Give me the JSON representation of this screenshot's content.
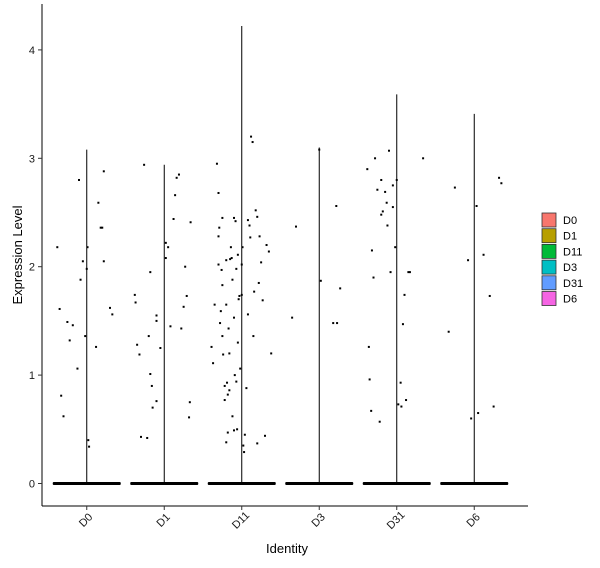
{
  "chart_data": {
    "type": "violin",
    "xlabel": "Identity",
    "ylabel": "Expression Level",
    "categories": [
      "D0",
      "D1",
      "D11",
      "D3",
      "D31",
      "D6"
    ],
    "yticks": [
      0,
      1,
      2,
      3,
      4
    ],
    "ylim": [
      -0.25,
      4.4
    ],
    "grid": false,
    "legend": {
      "position": "right",
      "entries": [
        "D0",
        "D1",
        "D11",
        "D3",
        "D31",
        "D6"
      ],
      "colors": [
        "#F8766D",
        "#B79F00",
        "#00BA38",
        "#00BFC4",
        "#619CFF",
        "#F564E3"
      ]
    },
    "series": [
      {
        "name": "D0",
        "max": 3.08,
        "points": [
          [
            -0.38,
            2.18
          ],
          [
            -0.35,
            1.61
          ],
          [
            -0.33,
            0.81
          ],
          [
            -0.3,
            0.62
          ],
          [
            -0.25,
            1.49
          ],
          [
            -0.22,
            1.32
          ],
          [
            -0.18,
            1.46
          ],
          [
            -0.12,
            1.06
          ],
          [
            -0.1,
            2.8
          ],
          [
            -0.08,
            1.88
          ],
          [
            -0.05,
            2.05
          ],
          [
            -0.02,
            1.36
          ],
          [
            0.0,
            1.98
          ],
          [
            0.01,
            2.18
          ],
          [
            0.02,
            0.4
          ],
          [
            0.03,
            0.34
          ],
          [
            0.12,
            1.26
          ],
          [
            0.15,
            2.59
          ],
          [
            0.18,
            2.36
          ],
          [
            0.2,
            2.36
          ],
          [
            0.22,
            2.88
          ],
          [
            0.22,
            2.05
          ],
          [
            0.3,
            1.62
          ],
          [
            0.33,
            1.56
          ]
        ]
      },
      {
        "name": "D1",
        "max": 2.94,
        "points": [
          [
            -0.38,
            1.74
          ],
          [
            -0.37,
            1.67
          ],
          [
            -0.35,
            1.28
          ],
          [
            -0.32,
            1.19
          ],
          [
            -0.3,
            0.43
          ],
          [
            -0.26,
            2.94
          ],
          [
            -0.22,
            0.42
          ],
          [
            -0.2,
            1.36
          ],
          [
            -0.15,
            0.7
          ],
          [
            -0.18,
            1.95
          ],
          [
            -0.18,
            1.01
          ],
          [
            -0.16,
            0.9
          ],
          [
            -0.1,
            1.5
          ],
          [
            -0.1,
            1.55
          ],
          [
            -0.1,
            0.76
          ],
          [
            -0.05,
            1.25
          ],
          [
            0.02,
            2.08
          ],
          [
            0.02,
            2.22
          ],
          [
            0.05,
            2.18
          ],
          [
            0.08,
            1.45
          ],
          [
            0.12,
            2.44
          ],
          [
            0.14,
            2.66
          ],
          [
            0.16,
            2.82
          ],
          [
            0.19,
            2.85
          ],
          [
            0.22,
            1.43
          ],
          [
            0.25,
            1.63
          ],
          [
            0.27,
            2.0
          ],
          [
            0.29,
            1.73
          ],
          [
            0.32,
            0.61
          ],
          [
            0.33,
            0.75
          ],
          [
            0.34,
            2.41
          ]
        ]
      },
      {
        "name": "D11",
        "max": 4.22,
        "points": [
          [
            -0.39,
            1.26
          ],
          [
            -0.37,
            1.11
          ],
          [
            -0.35,
            1.65
          ],
          [
            -0.32,
            2.95
          ],
          [
            -0.3,
            2.28
          ],
          [
            -0.3,
            2.68
          ],
          [
            -0.3,
            2.02
          ],
          [
            -0.29,
            2.36
          ],
          [
            -0.28,
            1.48
          ],
          [
            -0.27,
            1.59
          ],
          [
            -0.26,
            1.97
          ],
          [
            -0.25,
            2.45
          ],
          [
            -0.25,
            1.83
          ],
          [
            -0.25,
            1.36
          ],
          [
            -0.24,
            1.19
          ],
          [
            -0.22,
            0.9
          ],
          [
            -0.22,
            0.77
          ],
          [
            -0.2,
            2.06
          ],
          [
            -0.2,
            1.65
          ],
          [
            -0.2,
            0.38
          ],
          [
            -0.19,
            0.93
          ],
          [
            -0.18,
            0.82
          ],
          [
            -0.18,
            0.47
          ],
          [
            -0.17,
            1.43
          ],
          [
            -0.16,
            1.2
          ],
          [
            -0.16,
            0.86
          ],
          [
            -0.15,
            2.07
          ],
          [
            -0.14,
            2.18
          ],
          [
            -0.13,
            2.08
          ],
          [
            -0.12,
            1.88
          ],
          [
            -0.12,
            0.62
          ],
          [
            -0.1,
            2.45
          ],
          [
            -0.1,
            1.53
          ],
          [
            -0.1,
            0.49
          ],
          [
            -0.09,
            1.0
          ],
          [
            -0.08,
            2.42
          ],
          [
            -0.07,
            1.98
          ],
          [
            -0.07,
            0.94
          ],
          [
            -0.06,
            0.5
          ],
          [
            -0.05,
            1.3
          ],
          [
            -0.05,
            2.11
          ],
          [
            -0.04,
            1.7
          ],
          [
            -0.03,
            1.73
          ],
          [
            -0.02,
            1.06
          ],
          [
            0.0,
            1.74
          ],
          [
            0.0,
            2.02
          ],
          [
            0.01,
            2.18
          ],
          [
            0.02,
            0.35
          ],
          [
            0.03,
            0.29
          ],
          [
            0.04,
            0.45
          ],
          [
            0.06,
            0.88
          ],
          [
            0.08,
            1.56
          ],
          [
            0.08,
            2.43
          ],
          [
            0.1,
            2.38
          ],
          [
            0.11,
            2.27
          ],
          [
            0.12,
            3.2
          ],
          [
            0.14,
            3.15
          ],
          [
            0.15,
            1.36
          ],
          [
            0.16,
            1.77
          ],
          [
            0.18,
            2.52
          ],
          [
            0.2,
            2.46
          ],
          [
            0.2,
            0.37
          ],
          [
            0.22,
            1.85
          ],
          [
            0.23,
            2.28
          ],
          [
            0.25,
            2.04
          ],
          [
            0.27,
            1.69
          ],
          [
            0.3,
            0.44
          ],
          [
            0.32,
            2.2
          ],
          [
            0.35,
            2.14
          ],
          [
            0.38,
            1.2
          ]
        ]
      },
      {
        "name": "D3",
        "max": 3.1,
        "points": [
          [
            -0.35,
            1.53
          ],
          [
            -0.3,
            2.37
          ],
          [
            0.0,
            3.08
          ],
          [
            0.02,
            1.87
          ],
          [
            0.18,
            1.48
          ],
          [
            0.22,
            2.56
          ],
          [
            0.23,
            1.48
          ],
          [
            0.27,
            1.8
          ]
        ]
      },
      {
        "name": "D31",
        "max": 3.59,
        "points": [
          [
            -0.38,
            2.9
          ],
          [
            -0.36,
            1.26
          ],
          [
            -0.35,
            0.96
          ],
          [
            -0.33,
            0.67
          ],
          [
            -0.32,
            2.15
          ],
          [
            -0.3,
            1.9
          ],
          [
            -0.28,
            3.0
          ],
          [
            -0.25,
            2.71
          ],
          [
            -0.22,
            0.57
          ],
          [
            -0.2,
            2.48
          ],
          [
            -0.2,
            2.8
          ],
          [
            -0.18,
            2.51
          ],
          [
            -0.15,
            2.69
          ],
          [
            -0.13,
            2.59
          ],
          [
            -0.12,
            2.38
          ],
          [
            -0.1,
            3.07
          ],
          [
            -0.08,
            1.95
          ],
          [
            -0.05,
            2.75
          ],
          [
            -0.05,
            2.55
          ],
          [
            -0.02,
            2.18
          ],
          [
            0.0,
            2.8
          ],
          [
            0.02,
            0.73
          ],
          [
            0.05,
            0.93
          ],
          [
            0.06,
            0.71
          ],
          [
            0.08,
            1.47
          ],
          [
            0.1,
            1.74
          ],
          [
            0.12,
            0.77
          ],
          [
            0.15,
            1.95
          ],
          [
            0.17,
            1.95
          ],
          [
            0.34,
            3.0
          ]
        ]
      },
      {
        "name": "D6",
        "max": 3.41,
        "points": [
          [
            -0.33,
            1.4
          ],
          [
            -0.25,
            2.73
          ],
          [
            -0.08,
            2.06
          ],
          [
            -0.04,
            0.6
          ],
          [
            0.03,
            2.56
          ],
          [
            0.05,
            0.65
          ],
          [
            0.12,
            2.11
          ],
          [
            0.2,
            1.73
          ],
          [
            0.25,
            0.71
          ],
          [
            0.32,
            2.82
          ],
          [
            0.35,
            2.77
          ]
        ]
      }
    ]
  }
}
